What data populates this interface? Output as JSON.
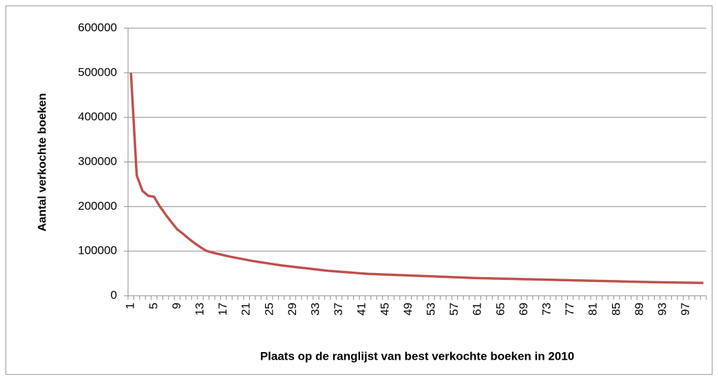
{
  "chart_data": {
    "type": "line",
    "ylabel": "Aantal verkochte boeken",
    "xlabel": "Plaats op de ranglijst van best verkochte boeken in 2010",
    "categories": [
      "1",
      null,
      null,
      null,
      "5",
      null,
      null,
      null,
      "9",
      null,
      null,
      null,
      "13",
      null,
      null,
      null,
      "17",
      null,
      null,
      null,
      "21",
      null,
      null,
      null,
      "25",
      null,
      null,
      null,
      "29",
      null,
      null,
      null,
      "33",
      null,
      null,
      null,
      "37",
      null,
      null,
      null,
      "41",
      null,
      null,
      null,
      "45",
      null,
      null,
      null,
      "49",
      null,
      null,
      null,
      "53",
      null,
      null,
      null,
      "57",
      null,
      null,
      null,
      "61",
      null,
      null,
      null,
      "65",
      null,
      null,
      null,
      "69",
      null,
      null,
      null,
      "73",
      null,
      null,
      null,
      "77",
      null,
      null,
      null,
      "81",
      null,
      null,
      null,
      "85",
      null,
      null,
      null,
      "89",
      null,
      null,
      null,
      "93",
      null,
      null,
      null,
      "97",
      null,
      null,
      null
    ],
    "series": [
      {
        "color": "#c0504d",
        "values": [
          500000,
          270000,
          235000,
          224000,
          222000,
          200000,
          182000,
          165000,
          149000,
          139000,
          128000,
          118000,
          109000,
          101000,
          97000,
          94000,
          91000,
          88000,
          85500,
          83000,
          80500,
          78000,
          76000,
          74000,
          72000,
          70000,
          68000,
          66500,
          65000,
          63500,
          62000,
          60500,
          59000,
          57500,
          56000,
          55000,
          54000,
          53000,
          52000,
          51000,
          50000,
          49000,
          48500,
          48000,
          47500,
          47000,
          46500,
          46000,
          45500,
          45000,
          44500,
          44000,
          43500,
          43000,
          42500,
          42000,
          41500,
          41000,
          40500,
          40000,
          39500,
          39200,
          38900,
          38600,
          38300,
          38000,
          37700,
          37400,
          37100,
          36800,
          36500,
          36200,
          35900,
          35600,
          35300,
          35000,
          34700,
          34400,
          34100,
          33800,
          33500,
          33200,
          32900,
          32600,
          32300,
          32000,
          31700,
          31400,
          31100,
          30800,
          30500,
          30300,
          30100,
          29900,
          29700,
          29500,
          29300,
          29100,
          28900,
          28700
        ]
      }
    ],
    "ylim": [
      0,
      600000
    ],
    "yticks": [
      0,
      100000,
      200000,
      300000,
      400000,
      500000,
      600000
    ],
    "grid": true
  }
}
